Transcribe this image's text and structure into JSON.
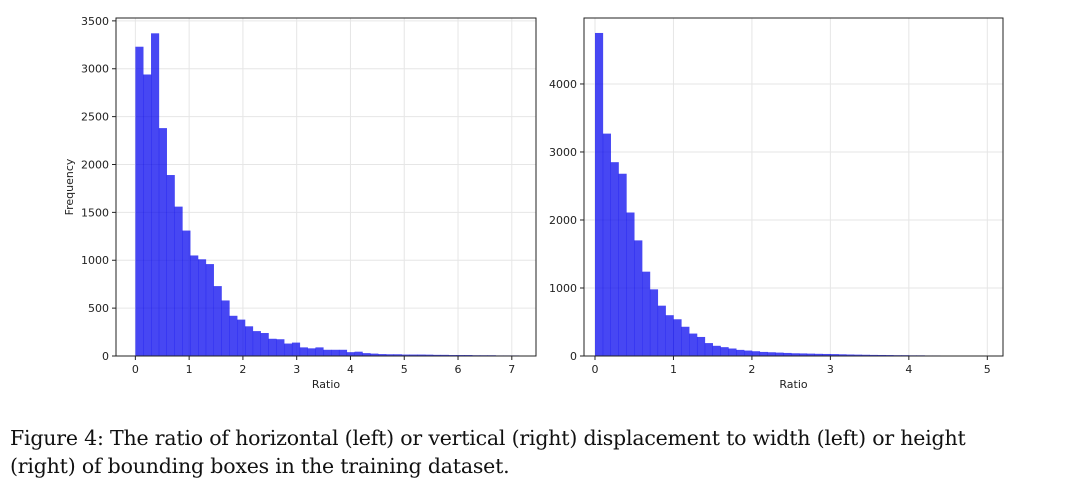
{
  "chart_data": [
    {
      "type": "bar",
      "subtype": "histogram",
      "panel": "left",
      "xlabel": "Ratio",
      "ylabel": "Frequency",
      "xlim": [
        -0.36,
        7.45
      ],
      "ylim": [
        0,
        3530
      ],
      "xticks": [
        0,
        1,
        2,
        3,
        4,
        5,
        6,
        7
      ],
      "yticks": [
        0,
        500,
        1000,
        1500,
        2000,
        2500,
        3000,
        3500
      ],
      "bin_start": 0,
      "bin_width": 0.1456,
      "values": [
        3230,
        2940,
        3370,
        2380,
        1890,
        1560,
        1310,
        1050,
        1010,
        960,
        730,
        580,
        420,
        380,
        310,
        260,
        240,
        180,
        175,
        130,
        140,
        90,
        80,
        90,
        65,
        65,
        65,
        40,
        45,
        30,
        25,
        20,
        18,
        18,
        15,
        15,
        15,
        14,
        12,
        12,
        10,
        10,
        10,
        8,
        8,
        8,
        6,
        6,
        6,
        5
      ],
      "grid": true,
      "color": "#0000ee"
    },
    {
      "type": "bar",
      "subtype": "histogram",
      "panel": "right",
      "xlabel": "Ratio",
      "ylabel": "",
      "xlim": [
        -0.14,
        5.2
      ],
      "ylim": [
        0,
        4970
      ],
      "xticks": [
        0,
        1,
        2,
        3,
        4,
        5
      ],
      "yticks": [
        0,
        1000,
        2000,
        3000,
        4000
      ],
      "bin_start": 0,
      "bin_width": 0.1,
      "values": [
        4750,
        3270,
        2850,
        2680,
        2110,
        1700,
        1240,
        980,
        740,
        600,
        540,
        430,
        330,
        280,
        190,
        150,
        130,
        110,
        90,
        80,
        70,
        60,
        55,
        50,
        45,
        40,
        38,
        35,
        32,
        30,
        28,
        25,
        22,
        20,
        18,
        16,
        15,
        14,
        12,
        12,
        10,
        10,
        8,
        8,
        6,
        6,
        5,
        5,
        4,
        4
      ],
      "grid": true,
      "color": "#0000ee"
    }
  ],
  "caption": {
    "line1": "Figure 4: The ratio of horizontal (left) or vertical (right) displacement to width (left) or height",
    "line2": "(right) of bounding boxes in the training dataset."
  }
}
